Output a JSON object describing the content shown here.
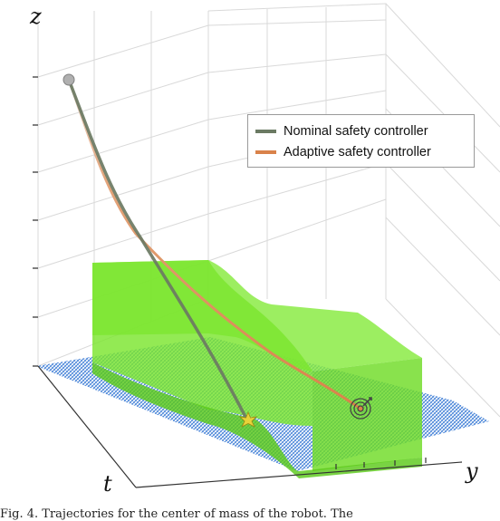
{
  "axes": {
    "z_label": "z",
    "t_label": "t",
    "y_label": "y"
  },
  "legend": {
    "items": [
      {
        "label": "Nominal safety controller",
        "color": "#6b7a63"
      },
      {
        "label": "Adaptive safety controller",
        "color": "#d9824a"
      }
    ]
  },
  "colors": {
    "safe_volume": "#7be52e",
    "floor_hatch": "#3a7bd5",
    "nominal_path": "#6b7a63",
    "adaptive_path": "#d9824a",
    "start_marker": "#b0b0b0",
    "collision_marker": "#e0c020",
    "goal_marker": "#444444"
  },
  "icons": {
    "start": "start-point-icon",
    "collision": "collision-star-icon",
    "goal": "target-icon"
  },
  "caption": "Fig. 4.   Trajectories for the center of mass of the robot. The"
}
